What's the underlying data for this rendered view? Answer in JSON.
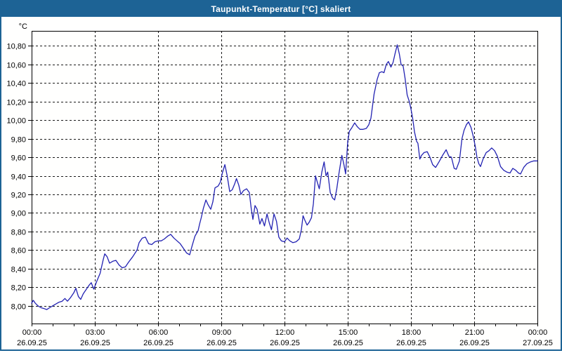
{
  "window": {
    "title": "Taupunkt-Temperatur [°C] skaliert"
  },
  "colors": {
    "frame": "#1d6395",
    "titlebar_bg": "#1d6395",
    "titlebar_text": "#ffffff",
    "plot_bg": "#fffffe",
    "line": "#2222b2",
    "grid": "#1a1a1a",
    "axis": "#000000",
    "text": "#000000"
  },
  "chart_data": {
    "type": "line",
    "title": "Taupunkt-Temperatur [°C] skaliert",
    "y_unit_label": "°C",
    "ylabel_format": "comma-decimal",
    "ylim": [
      7.81,
      10.96
    ],
    "y_ticks": [
      8.0,
      8.2,
      8.4,
      8.6,
      8.8,
      9.0,
      9.2,
      9.4,
      9.6,
      9.8,
      10.0,
      10.2,
      10.4,
      10.6,
      10.8
    ],
    "x_hours_range": [
      0,
      24
    ],
    "x_minor_tick_every_hours": 1,
    "grid": "dashed",
    "legend": "none",
    "x_major_ticks": [
      {
        "hour": 0,
        "time": "00:00",
        "date": "26.09.25"
      },
      {
        "hour": 3,
        "time": "03:00",
        "date": "26.09.25"
      },
      {
        "hour": 6,
        "time": "06:00",
        "date": "26.09.25"
      },
      {
        "hour": 9,
        "time": "09:00",
        "date": "26.09.25"
      },
      {
        "hour": 12,
        "time": "12:00",
        "date": "26.09.25"
      },
      {
        "hour": 15,
        "time": "15:00",
        "date": "26.09.25"
      },
      {
        "hour": 18,
        "time": "18:00",
        "date": "26.09.25"
      },
      {
        "hour": 21,
        "time": "21:00",
        "date": "26.09.25"
      },
      {
        "hour": 24,
        "time": "00:00",
        "date": "27.09.25"
      }
    ],
    "series": [
      {
        "name": "Taupunkt-Temperatur",
        "color": "#2222b2",
        "points": [
          [
            0,
            8.03
          ],
          [
            0.08,
            8.06
          ],
          [
            0.17,
            8.03
          ],
          [
            0.3,
            8.0
          ],
          [
            0.45,
            7.98
          ],
          [
            0.6,
            7.97
          ],
          [
            0.72,
            7.96
          ],
          [
            0.85,
            7.98
          ],
          [
            1,
            8.0
          ],
          [
            1.15,
            8.02
          ],
          [
            1.3,
            8.04
          ],
          [
            1.45,
            8.05
          ],
          [
            1.58,
            8.08
          ],
          [
            1.7,
            8.05
          ],
          [
            1.85,
            8.09
          ],
          [
            2,
            8.14
          ],
          [
            2.1,
            8.19
          ],
          [
            2.22,
            8.1
          ],
          [
            2.33,
            8.07
          ],
          [
            2.45,
            8.13
          ],
          [
            2.6,
            8.18
          ],
          [
            2.72,
            8.22
          ],
          [
            2.83,
            8.25
          ],
          [
            2.95,
            8.18
          ],
          [
            3.1,
            8.27
          ],
          [
            3.25,
            8.35
          ],
          [
            3.4,
            8.5
          ],
          [
            3.47,
            8.56
          ],
          [
            3.58,
            8.53
          ],
          [
            3.7,
            8.46
          ],
          [
            3.85,
            8.48
          ],
          [
            4,
            8.49
          ],
          [
            4.15,
            8.44
          ],
          [
            4.3,
            8.41
          ],
          [
            4.45,
            8.42
          ],
          [
            4.6,
            8.47
          ],
          [
            4.8,
            8.53
          ],
          [
            5,
            8.6
          ],
          [
            5.1,
            8.68
          ],
          [
            5.25,
            8.73
          ],
          [
            5.4,
            8.74
          ],
          [
            5.55,
            8.67
          ],
          [
            5.7,
            8.66
          ],
          [
            5.85,
            8.69
          ],
          [
            6,
            8.7
          ],
          [
            6.15,
            8.7
          ],
          [
            6.3,
            8.72
          ],
          [
            6.45,
            8.75
          ],
          [
            6.6,
            8.77
          ],
          [
            6.75,
            8.73
          ],
          [
            6.9,
            8.7
          ],
          [
            7.05,
            8.67
          ],
          [
            7.2,
            8.62
          ],
          [
            7.35,
            8.57
          ],
          [
            7.5,
            8.55
          ],
          [
            7.62,
            8.65
          ],
          [
            7.75,
            8.75
          ],
          [
            7.9,
            8.81
          ],
          [
            7.97,
            8.88
          ],
          [
            8.05,
            8.95
          ],
          [
            8.15,
            9.05
          ],
          [
            8.27,
            9.14
          ],
          [
            8.37,
            9.09
          ],
          [
            8.5,
            9.04
          ],
          [
            8.6,
            9.12
          ],
          [
            8.7,
            9.27
          ],
          [
            8.85,
            9.29
          ],
          [
            8.95,
            9.33
          ],
          [
            9.05,
            9.43
          ],
          [
            9.17,
            9.52
          ],
          [
            9.28,
            9.4
          ],
          [
            9.4,
            9.23
          ],
          [
            9.52,
            9.25
          ],
          [
            9.63,
            9.31
          ],
          [
            9.72,
            9.37
          ],
          [
            9.83,
            9.3
          ],
          [
            9.93,
            9.2
          ],
          [
            10.05,
            9.24
          ],
          [
            10.2,
            9.26
          ],
          [
            10.33,
            9.22
          ],
          [
            10.42,
            9.05
          ],
          [
            10.5,
            8.93
          ],
          [
            10.6,
            9.08
          ],
          [
            10.7,
            9.04
          ],
          [
            10.83,
            8.88
          ],
          [
            10.93,
            8.94
          ],
          [
            11.05,
            8.86
          ],
          [
            11.17,
            8.99
          ],
          [
            11.28,
            8.89
          ],
          [
            11.38,
            8.82
          ],
          [
            11.5,
            8.99
          ],
          [
            11.62,
            8.91
          ],
          [
            11.73,
            8.74
          ],
          [
            11.85,
            8.7
          ],
          [
            12,
            8.69
          ],
          [
            12.12,
            8.73
          ],
          [
            12.25,
            8.7
          ],
          [
            12.4,
            8.68
          ],
          [
            12.55,
            8.69
          ],
          [
            12.7,
            8.72
          ],
          [
            12.8,
            8.82
          ],
          [
            12.88,
            8.97
          ],
          [
            12.97,
            8.92
          ],
          [
            13.07,
            8.87
          ],
          [
            13.17,
            8.9
          ],
          [
            13.28,
            8.95
          ],
          [
            13.37,
            9.1
          ],
          [
            13.47,
            9.4
          ],
          [
            13.57,
            9.32
          ],
          [
            13.65,
            9.26
          ],
          [
            13.77,
            9.44
          ],
          [
            13.88,
            9.55
          ],
          [
            13.97,
            9.4
          ],
          [
            14.05,
            9.44
          ],
          [
            14.17,
            9.22
          ],
          [
            14.28,
            9.16
          ],
          [
            14.38,
            9.14
          ],
          [
            14.48,
            9.26
          ],
          [
            14.58,
            9.42
          ],
          [
            14.72,
            9.62
          ],
          [
            14.82,
            9.52
          ],
          [
            14.9,
            9.42
          ],
          [
            15,
            9.77
          ],
          [
            15.08,
            9.88
          ],
          [
            15.2,
            9.92
          ],
          [
            15.33,
            9.97
          ],
          [
            15.45,
            9.93
          ],
          [
            15.58,
            9.9
          ],
          [
            15.73,
            9.9
          ],
          [
            15.88,
            9.91
          ],
          [
            16,
            9.95
          ],
          [
            16.1,
            10.02
          ],
          [
            16.25,
            10.28
          ],
          [
            16.4,
            10.44
          ],
          [
            16.5,
            10.51
          ],
          [
            16.62,
            10.52
          ],
          [
            16.72,
            10.51
          ],
          [
            16.83,
            10.6
          ],
          [
            16.93,
            10.63
          ],
          [
            17.05,
            10.57
          ],
          [
            17.15,
            10.62
          ],
          [
            17.25,
            10.72
          ],
          [
            17.35,
            10.81
          ],
          [
            17.45,
            10.71
          ],
          [
            17.53,
            10.6
          ],
          [
            17.63,
            10.58
          ],
          [
            17.72,
            10.45
          ],
          [
            17.82,
            10.27
          ],
          [
            17.92,
            10.2
          ],
          [
            18,
            10.12
          ],
          [
            18.08,
            10.02
          ],
          [
            18.17,
            9.87
          ],
          [
            18.27,
            9.77
          ],
          [
            18.33,
            9.75
          ],
          [
            18.42,
            9.58
          ],
          [
            18.5,
            9.62
          ],
          [
            18.62,
            9.65
          ],
          [
            18.77,
            9.66
          ],
          [
            18.9,
            9.6
          ],
          [
            19.03,
            9.52
          ],
          [
            19.17,
            9.49
          ],
          [
            19.33,
            9.55
          ],
          [
            19.5,
            9.62
          ],
          [
            19.67,
            9.68
          ],
          [
            19.8,
            9.61
          ],
          [
            19.92,
            9.6
          ],
          [
            20.05,
            9.48
          ],
          [
            20.15,
            9.47
          ],
          [
            20.3,
            9.56
          ],
          [
            20.42,
            9.8
          ],
          [
            20.52,
            9.89
          ],
          [
            20.63,
            9.95
          ],
          [
            20.73,
            9.98
          ],
          [
            20.85,
            9.92
          ],
          [
            20.95,
            9.83
          ],
          [
            21.05,
            9.72
          ],
          [
            21.13,
            9.6
          ],
          [
            21.22,
            9.53
          ],
          [
            21.3,
            9.5
          ],
          [
            21.42,
            9.58
          ],
          [
            21.57,
            9.65
          ],
          [
            21.7,
            9.67
          ],
          [
            21.83,
            9.7
          ],
          [
            21.97,
            9.67
          ],
          [
            22.1,
            9.61
          ],
          [
            22.25,
            9.5
          ],
          [
            22.4,
            9.46
          ],
          [
            22.55,
            9.44
          ],
          [
            22.7,
            9.43
          ],
          [
            22.83,
            9.48
          ],
          [
            22.97,
            9.46
          ],
          [
            23.1,
            9.43
          ],
          [
            23.2,
            9.42
          ],
          [
            23.35,
            9.49
          ],
          [
            23.5,
            9.53
          ],
          [
            23.67,
            9.55
          ],
          [
            23.83,
            9.56
          ],
          [
            24,
            9.56
          ]
        ]
      }
    ]
  }
}
